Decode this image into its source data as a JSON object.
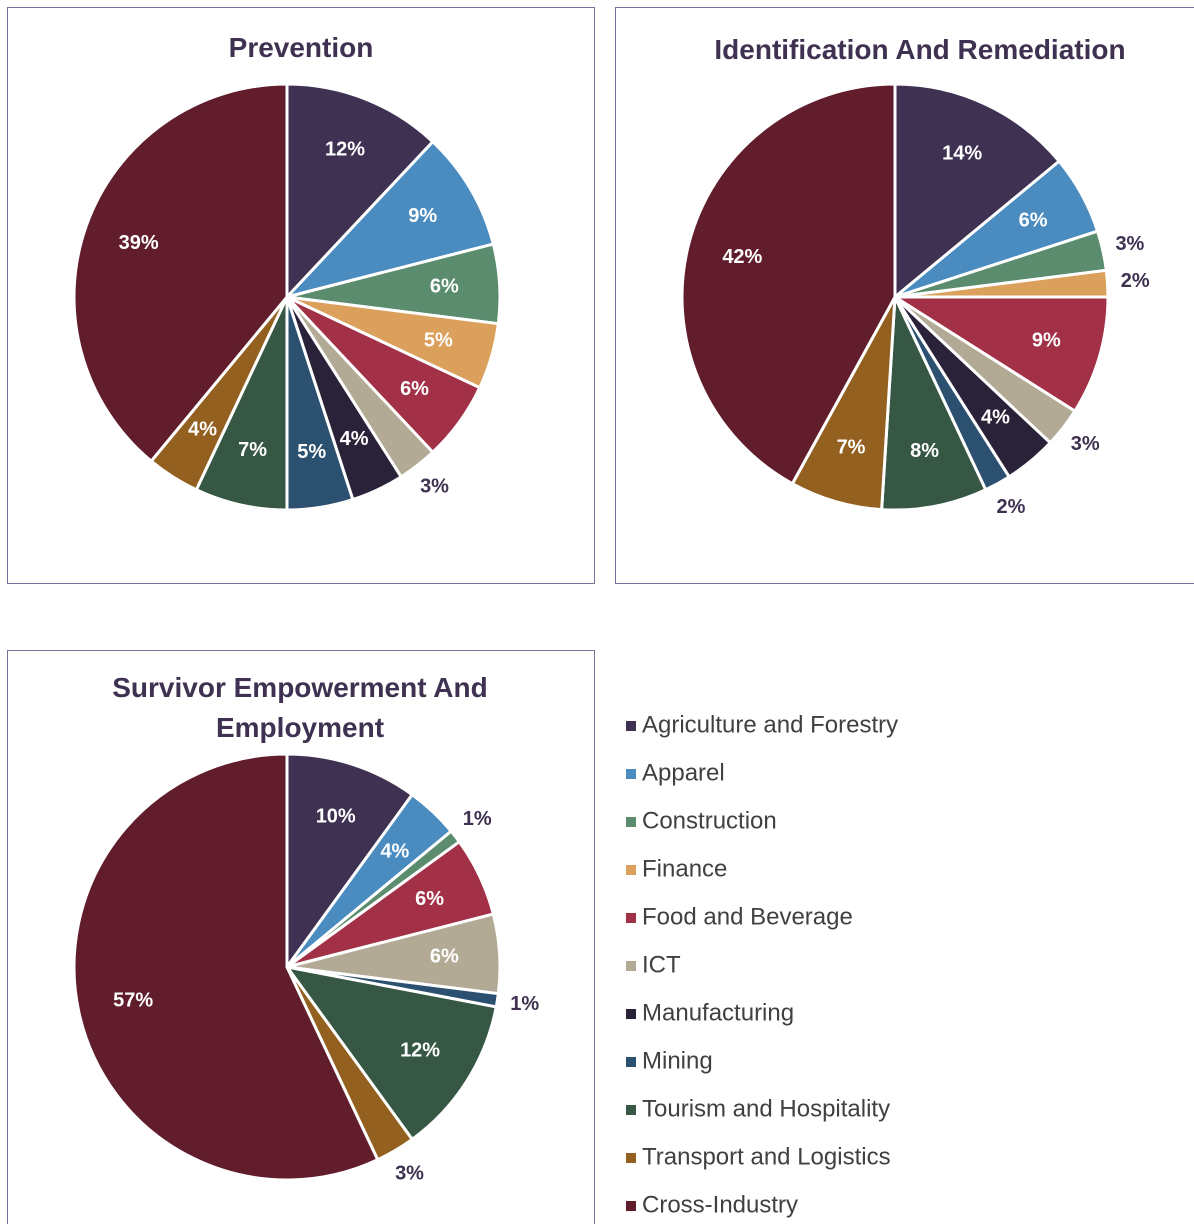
{
  "legend": {
    "categories": [
      "Agriculture and Forestry",
      "Apparel",
      "Construction",
      "Finance",
      "Food and Beverage",
      "ICT",
      "Manufacturing",
      "Mining",
      "Tourism and Hospitality",
      "Transport and Logistics",
      "Cross-Industry"
    ],
    "colors": [
      "#3f3151",
      "#4a8bc0",
      "#5b8c6e",
      "#dba05c",
      "#a23047",
      "#b3aa96",
      "#2a2238",
      "#2b5070",
      "#355743",
      "#93601f",
      "#611d2c"
    ]
  },
  "chart_data": [
    {
      "type": "pie",
      "title": "Prevention",
      "values": [
        12,
        9,
        6,
        5,
        6,
        3,
        4,
        5,
        7,
        4,
        39
      ],
      "value_labels": [
        "12%",
        "9%",
        "6%",
        "5%",
        "6%",
        "3%",
        "4%",
        "5%",
        "7%",
        "4%",
        "39%"
      ]
    },
    {
      "type": "pie",
      "title": "Identification And Remediation",
      "values": [
        14,
        6,
        3,
        2,
        9,
        3,
        4,
        2,
        8,
        7,
        42
      ],
      "value_labels": [
        "14%",
        "6%",
        "3%",
        "2%",
        "9%",
        "3%",
        "4%",
        "2%",
        "8%",
        "7%",
        "42%"
      ]
    },
    {
      "type": "pie",
      "title": "Survivor Empowerment And Employment",
      "values": [
        10,
        4,
        1,
        null,
        6,
        6,
        null,
        1,
        12,
        3,
        57
      ],
      "value_labels": [
        "10%",
        "4%",
        "1%",
        null,
        "6%",
        "6%",
        null,
        "1%",
        "12%",
        "3%",
        "57%"
      ]
    }
  ]
}
